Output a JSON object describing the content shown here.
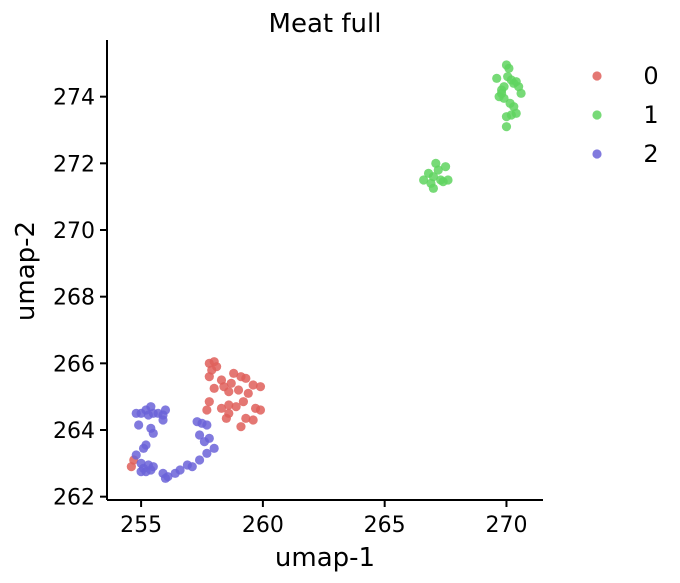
{
  "chart_data": {
    "type": "scatter",
    "title": "Meat full",
    "xlabel": "umap-1",
    "ylabel": "umap-2",
    "xlim": [
      253.6,
      271.5
    ],
    "ylim": [
      261.9,
      275.7
    ],
    "xticks": [
      255,
      260,
      265,
      270
    ],
    "yticks": [
      262,
      264,
      266,
      268,
      270,
      272,
      274
    ],
    "grid": false,
    "legend_position": "right",
    "series": [
      {
        "name": "0",
        "color": "#df5f5b",
        "points": [
          [
            254.6,
            262.9
          ],
          [
            254.7,
            263.1
          ],
          [
            257.8,
            266.0
          ],
          [
            258.0,
            266.05
          ],
          [
            257.9,
            265.8
          ],
          [
            258.1,
            265.9
          ],
          [
            257.8,
            265.6
          ],
          [
            258.3,
            265.5
          ],
          [
            258.0,
            265.25
          ],
          [
            258.4,
            265.3
          ],
          [
            258.8,
            265.7
          ],
          [
            259.1,
            265.6
          ],
          [
            259.3,
            265.55
          ],
          [
            258.7,
            265.4
          ],
          [
            259.6,
            265.35
          ],
          [
            259.9,
            265.3
          ],
          [
            259.0,
            265.2
          ],
          [
            258.6,
            265.15
          ],
          [
            259.4,
            265.1
          ],
          [
            257.8,
            264.85
          ],
          [
            258.3,
            264.65
          ],
          [
            258.6,
            264.75
          ],
          [
            258.9,
            264.7
          ],
          [
            259.2,
            264.85
          ],
          [
            259.7,
            264.65
          ],
          [
            259.9,
            264.6
          ],
          [
            257.7,
            264.6
          ],
          [
            258.6,
            264.5
          ],
          [
            259.3,
            264.35
          ],
          [
            258.5,
            264.35
          ],
          [
            259.6,
            264.3
          ],
          [
            259.1,
            264.1
          ]
        ]
      },
      {
        "name": "1",
        "color": "#5fd35f",
        "points": [
          [
            266.6,
            271.5
          ],
          [
            266.8,
            271.7
          ],
          [
            266.9,
            271.4
          ],
          [
            267.0,
            271.6
          ],
          [
            267.1,
            272.0
          ],
          [
            267.2,
            271.8
          ],
          [
            267.3,
            271.5
          ],
          [
            267.5,
            271.9
          ],
          [
            267.6,
            271.5
          ],
          [
            267.0,
            271.25
          ],
          [
            267.4,
            271.45
          ],
          [
            269.6,
            274.55
          ],
          [
            269.8,
            274.2
          ],
          [
            269.7,
            274.0
          ],
          [
            270.0,
            274.95
          ],
          [
            270.1,
            274.85
          ],
          [
            270.05,
            274.6
          ],
          [
            270.2,
            274.5
          ],
          [
            270.3,
            274.4
          ],
          [
            269.9,
            274.3
          ],
          [
            270.4,
            274.45
          ],
          [
            270.5,
            274.3
          ],
          [
            270.6,
            274.1
          ],
          [
            269.9,
            273.95
          ],
          [
            270.15,
            273.8
          ],
          [
            270.3,
            273.7
          ],
          [
            270.4,
            273.5
          ],
          [
            270.2,
            273.45
          ],
          [
            270.0,
            273.4
          ],
          [
            270.0,
            273.1
          ],
          [
            269.8,
            274.1
          ]
        ]
      },
      {
        "name": "2",
        "color": "#6b63d8",
        "points": [
          [
            254.8,
            264.5
          ],
          [
            255.0,
            264.5
          ],
          [
            255.2,
            264.6
          ],
          [
            255.4,
            264.7
          ],
          [
            255.5,
            264.5
          ],
          [
            255.3,
            264.45
          ],
          [
            255.7,
            264.5
          ],
          [
            255.9,
            264.45
          ],
          [
            256.0,
            264.6
          ],
          [
            255.9,
            264.3
          ],
          [
            254.9,
            264.15
          ],
          [
            255.4,
            264.05
          ],
          [
            255.5,
            263.9
          ],
          [
            255.2,
            263.55
          ],
          [
            255.1,
            263.45
          ],
          [
            254.8,
            263.25
          ],
          [
            255.0,
            263.0
          ],
          [
            255.1,
            262.85
          ],
          [
            255.3,
            262.95
          ],
          [
            255.2,
            262.75
          ],
          [
            255.4,
            262.8
          ],
          [
            255.0,
            262.75
          ],
          [
            255.5,
            262.9
          ],
          [
            255.9,
            262.7
          ],
          [
            256.1,
            262.6
          ],
          [
            256.0,
            262.55
          ],
          [
            256.4,
            262.7
          ],
          [
            256.6,
            262.8
          ],
          [
            256.9,
            262.95
          ],
          [
            257.1,
            262.9
          ],
          [
            257.4,
            263.1
          ],
          [
            257.7,
            263.3
          ],
          [
            258.0,
            263.45
          ],
          [
            257.6,
            263.65
          ],
          [
            257.4,
            263.85
          ],
          [
            257.8,
            263.75
          ],
          [
            257.5,
            264.2
          ],
          [
            257.3,
            264.25
          ],
          [
            257.7,
            264.15
          ]
        ]
      }
    ]
  }
}
